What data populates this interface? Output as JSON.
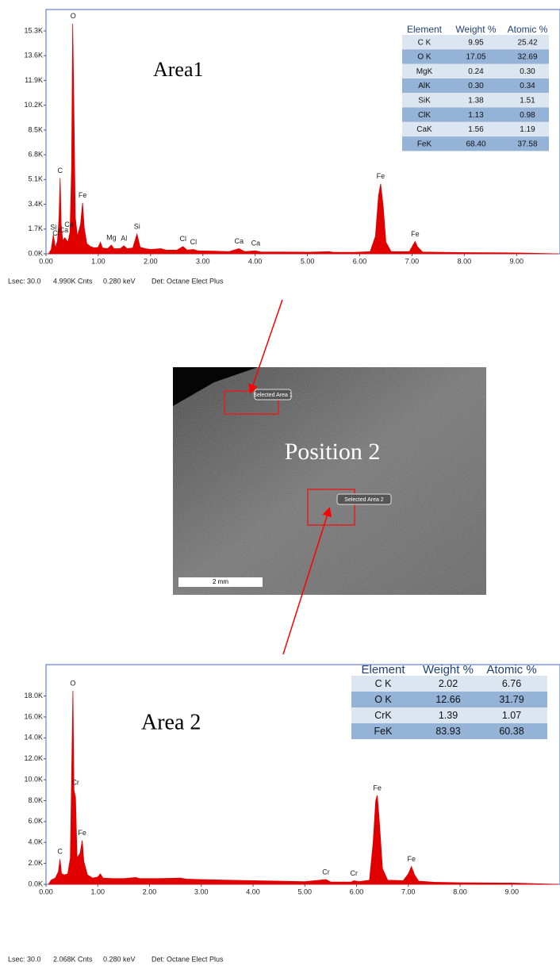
{
  "chart_data": [
    {
      "type": "area",
      "label": "Area1",
      "color": "#e00000",
      "x": [
        0.05,
        0.1,
        0.14,
        0.18,
        0.22,
        0.25,
        0.27,
        0.29,
        0.32,
        0.36,
        0.42,
        0.46,
        0.49,
        0.51,
        0.53,
        0.56,
        0.6,
        0.66,
        0.7,
        0.73,
        0.78,
        0.85,
        0.93,
        1.0,
        1.04,
        1.08,
        1.18,
        1.25,
        1.3,
        1.42,
        1.49,
        1.55,
        1.66,
        1.74,
        1.8,
        1.9,
        2.0,
        2.2,
        2.3,
        2.5,
        2.62,
        2.7,
        2.82,
        2.9,
        3.2,
        3.5,
        3.69,
        3.8,
        4.01,
        4.1,
        4.5,
        5.0,
        5.41,
        5.5,
        5.9,
        6.2,
        6.3,
        6.36,
        6.4,
        6.45,
        6.5,
        6.6,
        6.95,
        7.02,
        7.06,
        7.1,
        7.2,
        8.0,
        9.0,
        9.8
      ],
      "values": [
        0,
        300,
        1300,
        400,
        900,
        2500,
        5200,
        2000,
        900,
        1100,
        800,
        1500,
        6000,
        15800,
        11000,
        2500,
        1200,
        2000,
        3500,
        1800,
        700,
        500,
        400,
        450,
        800,
        400,
        350,
        600,
        350,
        350,
        550,
        350,
        400,
        1350,
        450,
        350,
        300,
        350,
        250,
        250,
        500,
        250,
        300,
        200,
        180,
        150,
        350,
        150,
        200,
        130,
        120,
        110,
        150,
        100,
        100,
        150,
        1200,
        4000,
        4800,
        3200,
        800,
        150,
        150,
        600,
        850,
        500,
        120,
        80,
        60,
        0
      ],
      "xlim": [
        0,
        9.83
      ],
      "ylim": [
        0,
        16770
      ],
      "xticks": [
        {
          "value": 0,
          "label": "0.00"
        },
        {
          "value": 1,
          "label": "1.00"
        },
        {
          "value": 2,
          "label": "2.00"
        },
        {
          "value": 3,
          "label": "3.00"
        },
        {
          "value": 4,
          "label": "4.00"
        },
        {
          "value": 5,
          "label": "5.00"
        },
        {
          "value": 6,
          "label": "6.00"
        },
        {
          "value": 7,
          "label": "7.00"
        },
        {
          "value": 8,
          "label": "8.00"
        },
        {
          "value": 9,
          "label": "9.00"
        }
      ],
      "yticks": [
        {
          "value": 0,
          "label": "0.0K"
        },
        {
          "value": 1700,
          "label": "1.7K"
        },
        {
          "value": 3400,
          "label": "3.4K"
        },
        {
          "value": 5100,
          "label": "5.1K"
        },
        {
          "value": 6800,
          "label": "6.8K"
        },
        {
          "value": 8500,
          "label": "8.5K"
        },
        {
          "value": 10200,
          "label": "10.2K"
        },
        {
          "value": 11900,
          "label": "11.9K"
        },
        {
          "value": 13600,
          "label": "13.6K"
        },
        {
          "value": 15300,
          "label": "15.3K"
        }
      ],
      "annotations": [
        {
          "text": "O",
          "x": 0.52
        },
        {
          "text": "C",
          "x": 0.27
        },
        {
          "text": "Fe",
          "x": 0.7
        },
        {
          "text": "Si",
          "x": 0.14
        },
        {
          "text": "Cl",
          "x": 0.19
        },
        {
          "text": "Ca",
          "x": 0.34
        },
        {
          "text": "Ca",
          "x": 0.44
        },
        {
          "text": "Mg",
          "x": 1.25
        },
        {
          "text": "Al",
          "x": 1.49
        },
        {
          "text": "Si",
          "x": 1.74
        },
        {
          "text": "Cl",
          "x": 2.62
        },
        {
          "text": "Cl",
          "x": 2.82
        },
        {
          "text": "Ca",
          "x": 3.69
        },
        {
          "text": "Ca",
          "x": 4.01
        },
        {
          "text": "Fe",
          "x": 6.4
        },
        {
          "text": "Fe",
          "x": 7.06
        }
      ],
      "table": {
        "columns": [
          "Element",
          "Weight %",
          "Atomic %"
        ],
        "rows": [
          [
            "C K",
            "9.95",
            "25.42"
          ],
          [
            "O K",
            "17.05",
            "32.69"
          ],
          [
            "MgK",
            "0.24",
            "0.30"
          ],
          [
            "AlK",
            "0.30",
            "0.34"
          ],
          [
            "SiK",
            "1.38",
            "1.51"
          ],
          [
            "ClK",
            "1.13",
            "0.98"
          ],
          [
            "CaK",
            "1.56",
            "1.19"
          ],
          [
            "FeK",
            "68.40",
            "37.58"
          ]
        ]
      },
      "footer": [
        "Lsec: 30.0",
        "4.990K Cnts",
        "0.280 keV",
        "Det: Octane Elect Plus"
      ]
    },
    {
      "type": "area",
      "label": "Area 2",
      "color": "#e00000",
      "x": [
        0.05,
        0.1,
        0.18,
        0.24,
        0.27,
        0.3,
        0.36,
        0.42,
        0.47,
        0.5,
        0.52,
        0.54,
        0.57,
        0.6,
        0.66,
        0.7,
        0.73,
        0.8,
        0.9,
        1.0,
        1.05,
        1.1,
        1.3,
        1.5,
        1.74,
        1.8,
        2.0,
        2.2,
        2.6,
        2.7,
        3.0,
        3.5,
        4.0,
        4.5,
        5.0,
        5.41,
        5.5,
        5.9,
        5.95,
        6.05,
        6.25,
        6.32,
        6.37,
        6.4,
        6.44,
        6.5,
        6.6,
        6.9,
        7.0,
        7.06,
        7.12,
        7.2,
        7.5,
        8.0,
        9.0,
        9.9
      ],
      "values": [
        0,
        400,
        600,
        1200,
        2400,
        1000,
        900,
        1000,
        2500,
        12000,
        18500,
        9000,
        8300,
        2500,
        3000,
        4200,
        2200,
        900,
        600,
        700,
        1000,
        600,
        550,
        550,
        650,
        550,
        550,
        550,
        600,
        500,
        450,
        400,
        350,
        300,
        250,
        450,
        220,
        220,
        350,
        250,
        400,
        4000,
        8000,
        8500,
        6000,
        1500,
        400,
        350,
        1000,
        1700,
        900,
        300,
        200,
        150,
        120,
        0
      ],
      "xlim": [
        0,
        9.93
      ],
      "ylim": [
        0,
        21000
      ],
      "xticks": [
        {
          "value": 0,
          "label": "0.00"
        },
        {
          "value": 1,
          "label": "1.00"
        },
        {
          "value": 2,
          "label": "2.00"
        },
        {
          "value": 3,
          "label": "3.00"
        },
        {
          "value": 4,
          "label": "4.00"
        },
        {
          "value": 5,
          "label": "5.00"
        },
        {
          "value": 6,
          "label": "6.00"
        },
        {
          "value": 7,
          "label": "7.00"
        },
        {
          "value": 8,
          "label": "8.00"
        },
        {
          "value": 9,
          "label": "9.00"
        }
      ],
      "yticks": [
        {
          "value": 0,
          "label": "0.0K"
        },
        {
          "value": 2000,
          "label": "2.0K"
        },
        {
          "value": 4000,
          "label": "4.0K"
        },
        {
          "value": 6000,
          "label": "6.0K"
        },
        {
          "value": 8000,
          "label": "8.0K"
        },
        {
          "value": 10000,
          "label": "10.0K"
        },
        {
          "value": 12000,
          "label": "12.0K"
        },
        {
          "value": 14000,
          "label": "14.0K"
        },
        {
          "value": 16000,
          "label": "16.0K"
        },
        {
          "value": 18000,
          "label": "18.0K"
        }
      ],
      "annotations": [
        {
          "text": "O",
          "x": 0.52
        },
        {
          "text": "Cr",
          "x": 0.57
        },
        {
          "text": "Fe",
          "x": 0.7
        },
        {
          "text": "C",
          "x": 0.27
        },
        {
          "text": "Cr",
          "x": 5.41
        },
        {
          "text": "Cr",
          "x": 5.95
        },
        {
          "text": "Fe",
          "x": 6.4
        },
        {
          "text": "Fe",
          "x": 7.06
        }
      ],
      "table": {
        "columns": [
          "Element",
          "Weight %",
          "Atomic %"
        ],
        "rows": [
          [
            "C K",
            "2.02",
            "6.76"
          ],
          [
            "O K",
            "12.66",
            "31.79"
          ],
          [
            "CrK",
            "1.39",
            "1.07"
          ],
          [
            "FeK",
            "83.93",
            "60.38"
          ]
        ]
      },
      "footer": [
        "Lsec: 30.0",
        "2.068K Cnts",
        "0.280 keV",
        "Det: Octane Elect Plus"
      ]
    }
  ],
  "image": {
    "label": "Position 2",
    "regions": [
      "Selected Area 1",
      "Selected Area 2"
    ],
    "scale_bar": "2 mm"
  }
}
